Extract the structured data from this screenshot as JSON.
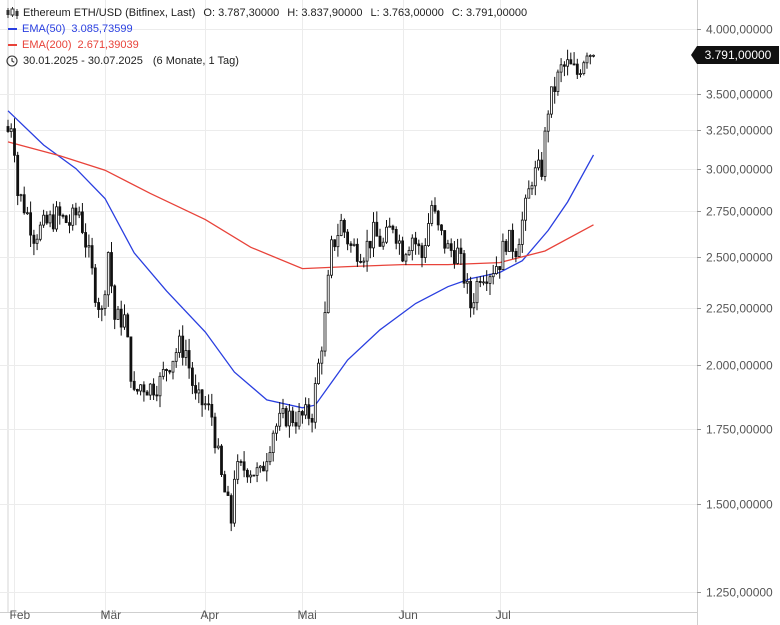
{
  "header": {
    "instrument": "Ethereum ETH/USD (Bitfinex, Last)",
    "open_label": "O:",
    "open": "3.787,30000",
    "high_label": "H:",
    "high": "3.837,90000",
    "low_label": "L:",
    "low": "3.763,00000",
    "close_label": "C:",
    "close": "3.791,00000",
    "range": "30.01.2025 - 30.07.2025",
    "range_detail": "(6 Monate, 1 Tag)",
    "icons": {
      "chart_type": "candlestick-icon",
      "range": "clock-icon"
    }
  },
  "indicators": [
    {
      "name": "EMA(50)",
      "value": "3.085,73599",
      "color": "#2a3fe0"
    },
    {
      "name": "EMA(200)",
      "value": "2.671,39039",
      "color": "#e8433a"
    }
  ],
  "last_price_label": "3.791,00000",
  "chart_data": {
    "type": "candlestick",
    "y_scale": "log",
    "ylim": [
      1200,
      4250
    ],
    "y_ticks": [
      {
        "value": 4000,
        "label": "4.000,00000"
      },
      {
        "value": 3500,
        "label": "3.500,00000"
      },
      {
        "value": 3250,
        "label": "3.250,00000"
      },
      {
        "value": 3000,
        "label": "3.000,00000"
      },
      {
        "value": 2750,
        "label": "2.750,00000"
      },
      {
        "value": 2500,
        "label": "2.500,00000"
      },
      {
        "value": 2250,
        "label": "2.250,00000"
      },
      {
        "value": 2000,
        "label": "2.000,00000"
      },
      {
        "value": 1750,
        "label": "1.750,00000"
      },
      {
        "value": 1500,
        "label": "1.500,00000"
      },
      {
        "value": 1250,
        "label": "1.250,00000"
      }
    ],
    "x_ticks": [
      {
        "date": "2025-02-01",
        "label": "Feb"
      },
      {
        "date": "2025-03-01",
        "label": "Mär"
      },
      {
        "date": "2025-04-01",
        "label": "Apr"
      },
      {
        "date": "2025-05-01",
        "label": "Mai"
      },
      {
        "date": "2025-06-01",
        "label": "Jun"
      },
      {
        "date": "2025-07-01",
        "label": "Jul"
      }
    ],
    "x_range": [
      "2025-01-30",
      "2025-08-31"
    ],
    "last_price": 3791,
    "candle_colors": {
      "up": "#ffffff",
      "down": "#111111",
      "outline": "#111111"
    },
    "grid": true,
    "close_anchors": [
      [
        "2025-01-30",
        3240
      ],
      [
        "2025-01-31",
        3300
      ],
      [
        "2025-02-01",
        3150
      ],
      [
        "2025-02-02",
        2850
      ],
      [
        "2025-02-03",
        2820
      ],
      [
        "2025-02-05",
        2730
      ],
      [
        "2025-02-07",
        2620
      ],
      [
        "2025-02-10",
        2660
      ],
      [
        "2025-02-14",
        2720
      ],
      [
        "2025-02-18",
        2680
      ],
      [
        "2025-02-21",
        2750
      ],
      [
        "2025-02-24",
        2500
      ],
      [
        "2025-02-26",
        2330
      ],
      [
        "2025-02-28",
        2220
      ],
      [
        "2025-03-02",
        2530
      ],
      [
        "2025-03-04",
        2200
      ],
      [
        "2025-03-07",
        2200
      ],
      [
        "2025-03-10",
        1870
      ],
      [
        "2025-03-12",
        1920
      ],
      [
        "2025-03-15",
        1910
      ],
      [
        "2025-03-18",
        1930
      ],
      [
        "2025-03-20",
        1990
      ],
      [
        "2025-03-24",
        2080
      ],
      [
        "2025-03-26",
        2060
      ],
      [
        "2025-03-29",
        1860
      ],
      [
        "2025-04-01",
        1840
      ],
      [
        "2025-04-03",
        1800
      ],
      [
        "2025-04-06",
        1580
      ],
      [
        "2025-04-09",
        1450
      ],
      [
        "2025-04-10",
        1600
      ],
      [
        "2025-04-14",
        1620
      ],
      [
        "2025-04-18",
        1590
      ],
      [
        "2025-04-22",
        1750
      ],
      [
        "2025-04-26",
        1800
      ],
      [
        "2025-04-30",
        1790
      ],
      [
        "2025-05-04",
        1810
      ],
      [
        "2025-05-08",
        2200
      ],
      [
        "2025-05-10",
        2540
      ],
      [
        "2025-05-13",
        2680
      ],
      [
        "2025-05-16",
        2550
      ],
      [
        "2025-05-20",
        2530
      ],
      [
        "2025-05-23",
        2620
      ],
      [
        "2025-05-26",
        2560
      ],
      [
        "2025-05-29",
        2680
      ],
      [
        "2025-06-01",
        2530
      ],
      [
        "2025-06-04",
        2610
      ],
      [
        "2025-06-07",
        2500
      ],
      [
        "2025-06-10",
        2780
      ],
      [
        "2025-06-12",
        2640
      ],
      [
        "2025-06-15",
        2540
      ],
      [
        "2025-06-18",
        2520
      ],
      [
        "2025-06-20",
        2400
      ],
      [
        "2025-06-22",
        2260
      ],
      [
        "2025-06-25",
        2420
      ],
      [
        "2025-06-28",
        2430
      ],
      [
        "2025-07-01",
        2480
      ],
      [
        "2025-07-03",
        2590
      ],
      [
        "2025-07-06",
        2550
      ],
      [
        "2025-07-09",
        2760
      ],
      [
        "2025-07-11",
        2950
      ],
      [
        "2025-07-14",
        3000
      ],
      [
        "2025-07-16",
        3400
      ],
      [
        "2025-07-18",
        3550
      ],
      [
        "2025-07-20",
        3680
      ],
      [
        "2025-07-22",
        3710
      ],
      [
        "2025-07-25",
        3650
      ],
      [
        "2025-07-28",
        3850
      ],
      [
        "2025-07-30",
        3791
      ]
    ],
    "series": [
      {
        "name": "EMA(50)",
        "color": "#2a3fe0",
        "points": [
          [
            "2025-01-30",
            3380
          ],
          [
            "2025-02-10",
            3150
          ],
          [
            "2025-02-20",
            3000
          ],
          [
            "2025-03-01",
            2820
          ],
          [
            "2025-03-10",
            2520
          ],
          [
            "2025-03-20",
            2330
          ],
          [
            "2025-04-01",
            2140
          ],
          [
            "2025-04-10",
            1970
          ],
          [
            "2025-04-20",
            1860
          ],
          [
            "2025-05-01",
            1830
          ],
          [
            "2025-05-05",
            1840
          ],
          [
            "2025-05-15",
            2020
          ],
          [
            "2025-05-25",
            2150
          ],
          [
            "2025-06-05",
            2270
          ],
          [
            "2025-06-15",
            2350
          ],
          [
            "2025-06-22",
            2390
          ],
          [
            "2025-07-01",
            2420
          ],
          [
            "2025-07-08",
            2480
          ],
          [
            "2025-07-16",
            2640
          ],
          [
            "2025-07-22",
            2800
          ],
          [
            "2025-07-30",
            3086
          ]
        ]
      },
      {
        "name": "EMA(200)",
        "color": "#e8433a",
        "points": [
          [
            "2025-01-30",
            3170
          ],
          [
            "2025-02-15",
            3080
          ],
          [
            "2025-03-01",
            2990
          ],
          [
            "2025-03-15",
            2850
          ],
          [
            "2025-04-01",
            2700
          ],
          [
            "2025-04-15",
            2550
          ],
          [
            "2025-05-01",
            2440
          ],
          [
            "2025-05-15",
            2450
          ],
          [
            "2025-06-01",
            2460
          ],
          [
            "2025-06-15",
            2460
          ],
          [
            "2025-07-01",
            2470
          ],
          [
            "2025-07-15",
            2530
          ],
          [
            "2025-07-30",
            2671
          ]
        ]
      }
    ]
  }
}
